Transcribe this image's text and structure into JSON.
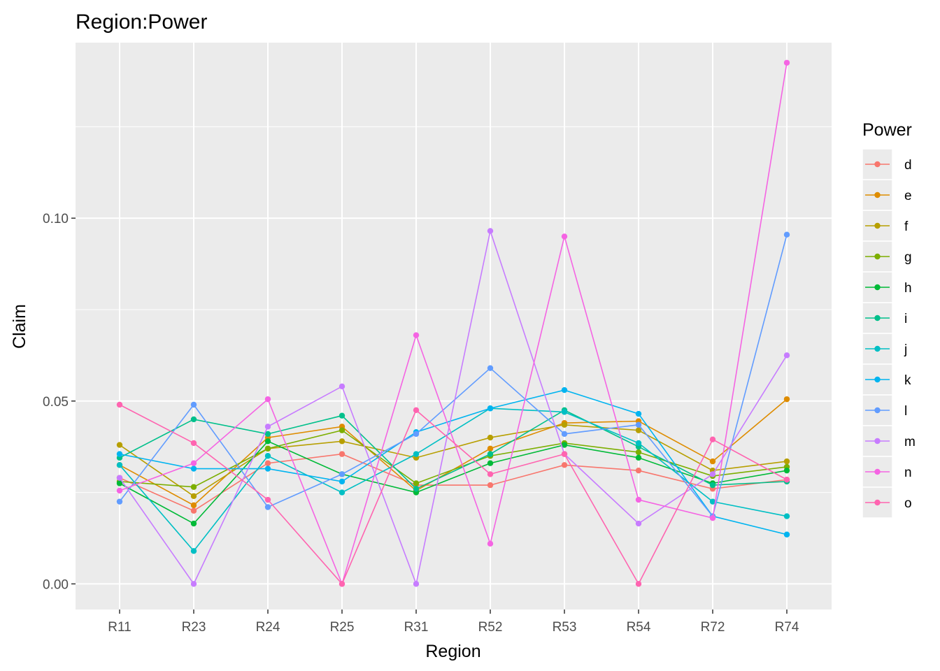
{
  "chart_data": {
    "type": "line",
    "title": "Region:Power",
    "xlabel": "Region",
    "ylabel": "Claim",
    "categories": [
      "R11",
      "R23",
      "R24",
      "R25",
      "R31",
      "R52",
      "R53",
      "R54",
      "R72",
      "R74"
    ],
    "ylim": [
      -0.007,
      0.148
    ],
    "yticks": [
      0.0,
      0.05,
      0.1
    ],
    "ytick_labels": [
      "0.00",
      "0.05",
      "0.10"
    ],
    "grid": true,
    "legend_title": "Power",
    "legend_position": "right",
    "series": [
      {
        "name": "d",
        "color": "#F8766D",
        "values": [
          0.029,
          0.02,
          0.033,
          0.0355,
          0.027,
          0.027,
          0.0325,
          0.031,
          0.026,
          0.0285
        ]
      },
      {
        "name": "e",
        "color": "#DE8C00",
        "values": [
          0.0325,
          0.0215,
          0.04,
          0.043,
          0.0255,
          0.037,
          0.044,
          0.0445,
          0.0335,
          0.0505
        ]
      },
      {
        "name": "f",
        "color": "#B79F00",
        "values": [
          0.038,
          0.024,
          0.037,
          0.039,
          0.0345,
          0.04,
          0.0435,
          0.042,
          0.031,
          0.0335
        ]
      },
      {
        "name": "g",
        "color": "#7CAE00",
        "values": [
          0.028,
          0.0265,
          0.037,
          0.042,
          0.0275,
          0.035,
          0.0385,
          0.036,
          0.0295,
          0.032
        ]
      },
      {
        "name": "h",
        "color": "#00BA38",
        "values": [
          0.0275,
          0.0165,
          0.039,
          0.03,
          0.025,
          0.033,
          0.038,
          0.0345,
          0.0275,
          0.031
        ]
      },
      {
        "name": "i",
        "color": "#00C08B",
        "values": [
          0.0345,
          0.045,
          0.041,
          0.046,
          0.026,
          0.0355,
          0.0475,
          0.0375,
          0.027,
          0.028
        ]
      },
      {
        "name": "j",
        "color": "#00BFC4",
        "values": [
          0.0325,
          0.009,
          0.035,
          0.025,
          0.0355,
          0.048,
          0.047,
          0.0385,
          0.0225,
          0.0185
        ]
      },
      {
        "name": "k",
        "color": "#00B4F0",
        "values": [
          0.0355,
          0.0315,
          0.0315,
          0.028,
          0.0415,
          0.048,
          0.053,
          0.0465,
          0.0185,
          0.0135
        ]
      },
      {
        "name": "l",
        "color": "#619CFF",
        "values": [
          0.0225,
          0.049,
          0.021,
          0.03,
          0.041,
          0.059,
          0.041,
          0.0435,
          0.0185,
          0.0955
        ]
      },
      {
        "name": "m",
        "color": "#C77CFF",
        "values": [
          0.029,
          0.0,
          0.043,
          0.054,
          0.0,
          0.0965,
          0.0355,
          0.0165,
          0.03,
          0.0625
        ]
      },
      {
        "name": "n",
        "color": "#F564E3",
        "values": [
          0.0255,
          0.033,
          0.0505,
          0.0,
          0.068,
          0.011,
          0.095,
          0.023,
          0.018,
          0.1425
        ]
      },
      {
        "name": "o",
        "color": "#FF64B0",
        "values": [
          0.049,
          0.0385,
          0.023,
          0.0,
          0.0475,
          0.03,
          0.0355,
          0.0,
          0.0395,
          0.0285
        ]
      }
    ]
  }
}
